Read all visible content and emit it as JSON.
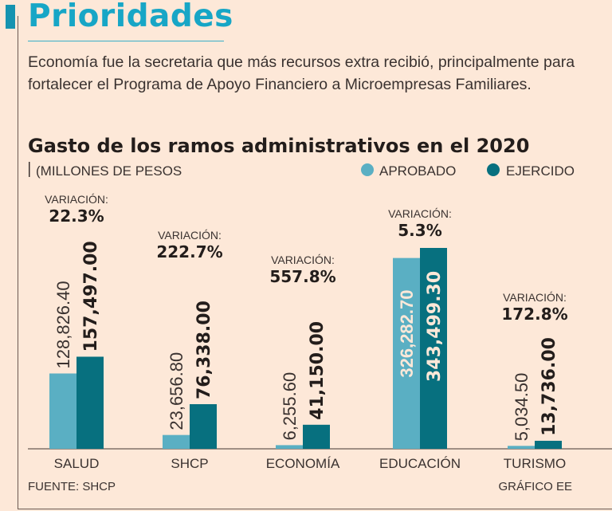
{
  "header": {
    "title": "Prioridades",
    "lead": "Economía fue la secretaria que más recursos extra recibió, principalmente para fortalecer el Programa de Apoyo Financiero a Microempresas Familiares."
  },
  "colors": {
    "aprobado": "#5aafc3",
    "ejercido": "#07707f",
    "title": "#17a6c6",
    "background": "#fde8d8"
  },
  "chart_data": {
    "type": "bar",
    "title": "Gasto de los ramos administrativos en el 2020",
    "subtitle": "(MILLONES DE PESOS",
    "legend": [
      "APROBADO",
      "EJERCIDO"
    ],
    "legend_placement": "top-right",
    "categories": [
      "SALUD",
      "SHCP",
      "ECONOMÍA",
      "EDUCACIÓN",
      "TURISMO"
    ],
    "series": [
      {
        "name": "APROBADO",
        "values": [
          128826.4,
          23656.8,
          6255.6,
          326282.7,
          5034.5
        ],
        "labels": [
          "128,826.40",
          "23,656.80",
          "6,255.60",
          "326,282.70",
          "5,034.50"
        ]
      },
      {
        "name": "EJERCIDO",
        "values": [
          157497.0,
          76338.0,
          41150.0,
          343499.3,
          13736.0
        ],
        "labels": [
          "157,497.00",
          "76,338.00",
          "41,150.00",
          "343,499.30",
          "13,736.00"
        ]
      }
    ],
    "variation_label": "VARIACIÓN:",
    "variations": [
      "22.3%",
      "222.7%",
      "557.8%",
      "5.3%",
      "172.8%"
    ],
    "ylim": [
      0,
      343499.3
    ],
    "source": "FUENTE: SHCP",
    "credit": "GRÁFICO EE"
  }
}
